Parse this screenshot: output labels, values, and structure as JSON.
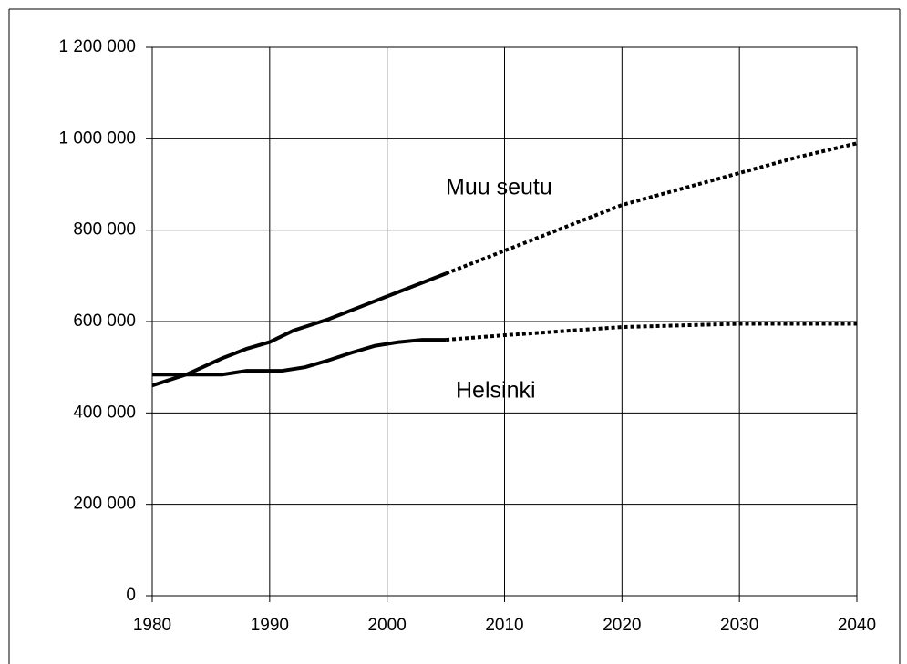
{
  "chart_data": {
    "type": "line",
    "series": [
      {
        "name": "Muu seutu",
        "color": "#000000",
        "x": [
          1980,
          1983,
          1986,
          1988,
          1990,
          1992,
          1995,
          1998,
          2000,
          2003,
          2005
        ],
        "values": [
          460000,
          485000,
          520000,
          540000,
          555000,
          580000,
          605000,
          635000,
          655000,
          685000,
          705000
        ],
        "projection_x": [
          2005,
          2010,
          2015,
          2020,
          2025,
          2030,
          2035,
          2040
        ],
        "projection_values": [
          705000,
          755000,
          805000,
          855000,
          890000,
          925000,
          960000,
          990000
        ]
      },
      {
        "name": "Helsinki",
        "color": "#000000",
        "x": [
          1980,
          1983,
          1986,
          1988,
          1991,
          1993,
          1995,
          1997,
          1999,
          2001,
          2003,
          2005
        ],
        "values": [
          484000,
          484000,
          484000,
          492000,
          492000,
          500000,
          515000,
          532000,
          547000,
          555000,
          560000,
          560000
        ],
        "projection_x": [
          2005,
          2010,
          2020,
          2030,
          2040
        ],
        "projection_values": [
          560000,
          570000,
          588000,
          595000,
          595000
        ]
      }
    ],
    "xlim": [
      1980,
      2040
    ],
    "xticks": [
      1980,
      1990,
      2000,
      2010,
      2020,
      2030,
      2040
    ],
    "ylim": [
      0,
      1200000
    ],
    "yticks": [
      0,
      {
        "value": 200000,
        "label": "200 000"
      },
      {
        "value": 400000,
        "label": "400 000"
      },
      {
        "value": 600000,
        "label": "600 000"
      },
      {
        "value": 800000,
        "label": "800 000"
      },
      {
        "value": 1000000,
        "label": "1 000 000"
      },
      {
        "value": 1200000,
        "label": "1 200 000"
      }
    ],
    "grid": true
  }
}
